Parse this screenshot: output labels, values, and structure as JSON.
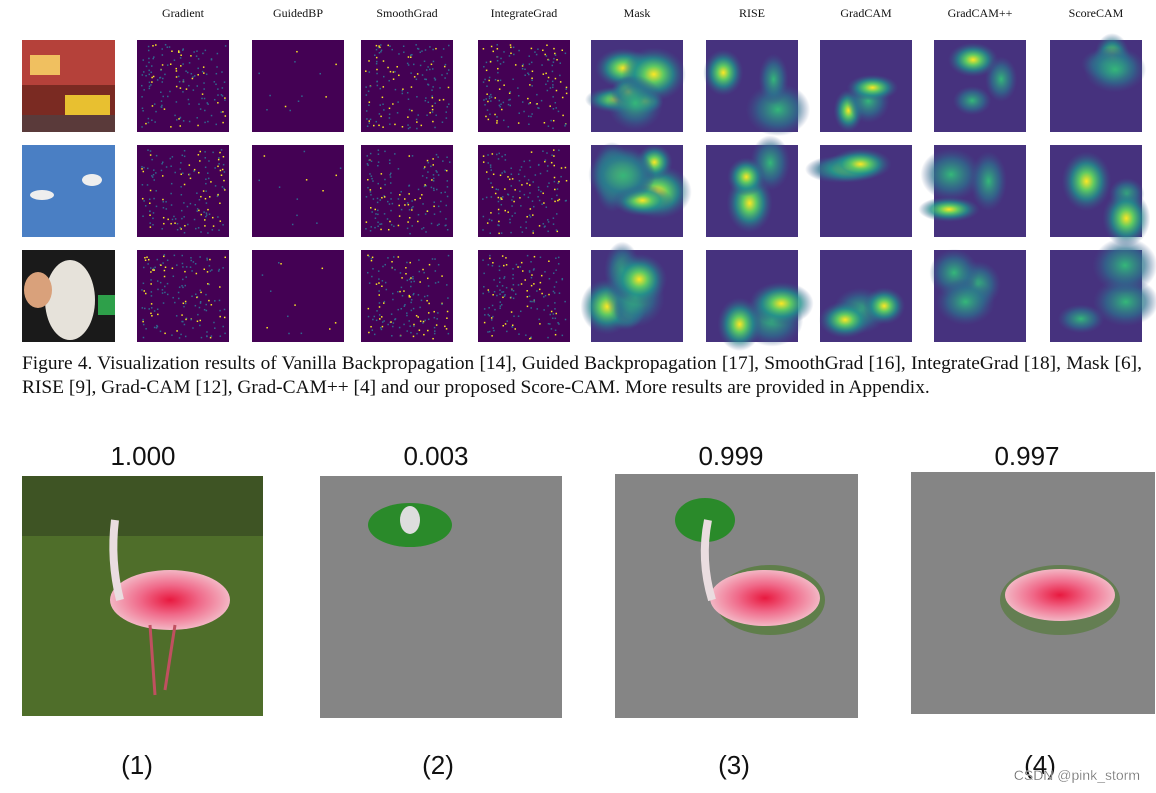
{
  "figure4": {
    "column_headers": [
      "Gradient",
      "GuidedBP",
      "SmoothGrad",
      "IntegrateGrad",
      "Mask",
      "RISE",
      "GradCAM",
      "GradCAM++",
      "ScoreCAM"
    ],
    "caption": "Figure 4. Visualization results of Vanilla Backpropagation [14], Guided Backpropagation [17], SmoothGrad [16], IntegrateGrad [18], Mask [6], RISE [9], Grad-CAM [12], Grad-CAM++ [4] and our proposed Score-CAM. More results are provided in Appendix."
  },
  "example": {
    "scores": [
      "1.000",
      "0.003",
      "0.999",
      "0.997"
    ],
    "labels": [
      "(1)",
      "(2)",
      "(3)",
      "(4)"
    ]
  },
  "watermark": "CSDN @pink_storm"
}
